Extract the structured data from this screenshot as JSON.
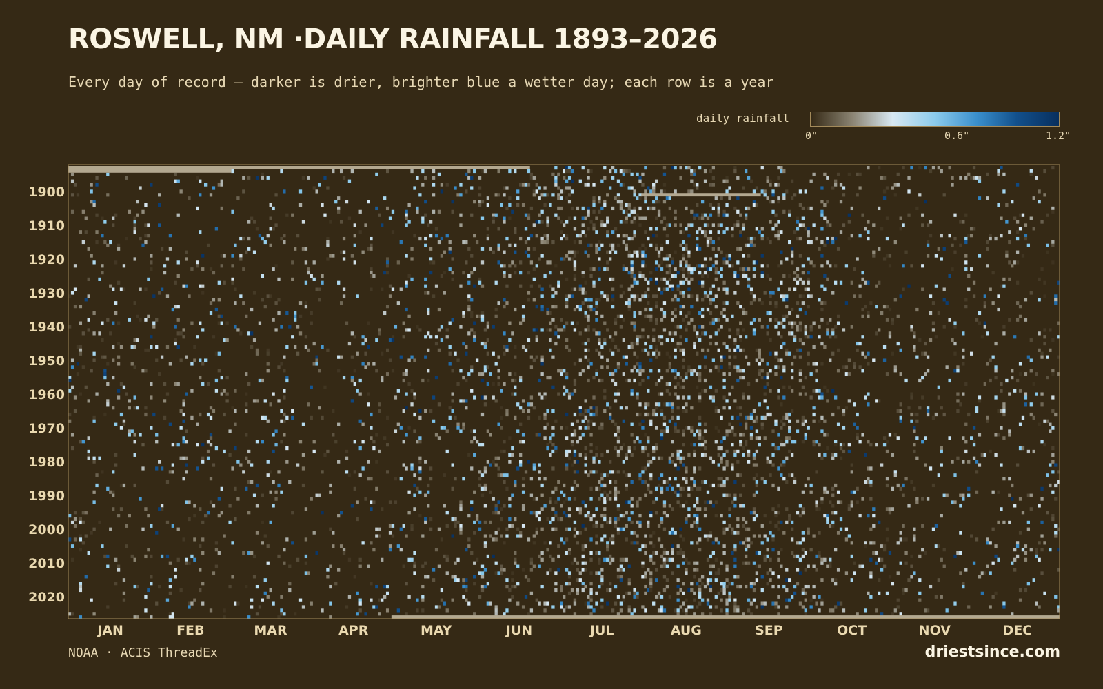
{
  "title": "ROSWELL, NM ·DAILY RAINFALL 1893–2026",
  "subtitle": "Every day of record — darker is drier, brighter blue a wetter day; each row is a year",
  "legend": {
    "label": "daily rainfall",
    "ticks": [
      "0\"",
      "0.6\"",
      "1.2\""
    ],
    "min": 0,
    "max": 1.2,
    "unit": "in",
    "colors": [
      "#352915",
      "#8c8574",
      "#d8e8f2",
      "#8ccbec",
      "#3a8fcc",
      "#12508c",
      "#082f5e"
    ]
  },
  "footer": {
    "source": "NOAA · ACIS ThreadEx",
    "brand": "driestsince.com"
  },
  "colors": {
    "background": "#352915",
    "missing": "#b3a890",
    "frame": "#a38a5a"
  },
  "chart_data": {
    "type": "heatmap",
    "title": "ROSWELL, NM ·DAILY RAINFALL 1893–2026",
    "x_categories": [
      "JAN",
      "FEB",
      "MAR",
      "APR",
      "MAY",
      "JUN",
      "JUL",
      "AUG",
      "SEP",
      "OCT",
      "NOV",
      "DEC"
    ],
    "x_unit": "day of year",
    "y_range": [
      1893,
      2026
    ],
    "y_ticks": [
      "1900",
      "1910",
      "1920",
      "1930",
      "1940",
      "1950",
      "1960",
      "1970",
      "1980",
      "1990",
      "2000",
      "2010",
      "2020"
    ],
    "value_range": [
      0,
      1.2
    ],
    "value_unit": "in",
    "seasonal_wet_day_probability": [
      0.07,
      0.07,
      0.06,
      0.06,
      0.09,
      0.13,
      0.2,
      0.22,
      0.17,
      0.1,
      0.07,
      0.08
    ],
    "missing_periods": [
      {
        "year": 1893,
        "start_day": 1,
        "end_day": 170
      },
      {
        "year": 1894,
        "start_day": 1,
        "end_day": 60
      },
      {
        "year": 1901,
        "start_day": 212,
        "end_day": 255
      },
      {
        "year": 2026,
        "start_day": 120,
        "end_day": 365
      }
    ],
    "grid": false,
    "legend_position": "top-right"
  }
}
